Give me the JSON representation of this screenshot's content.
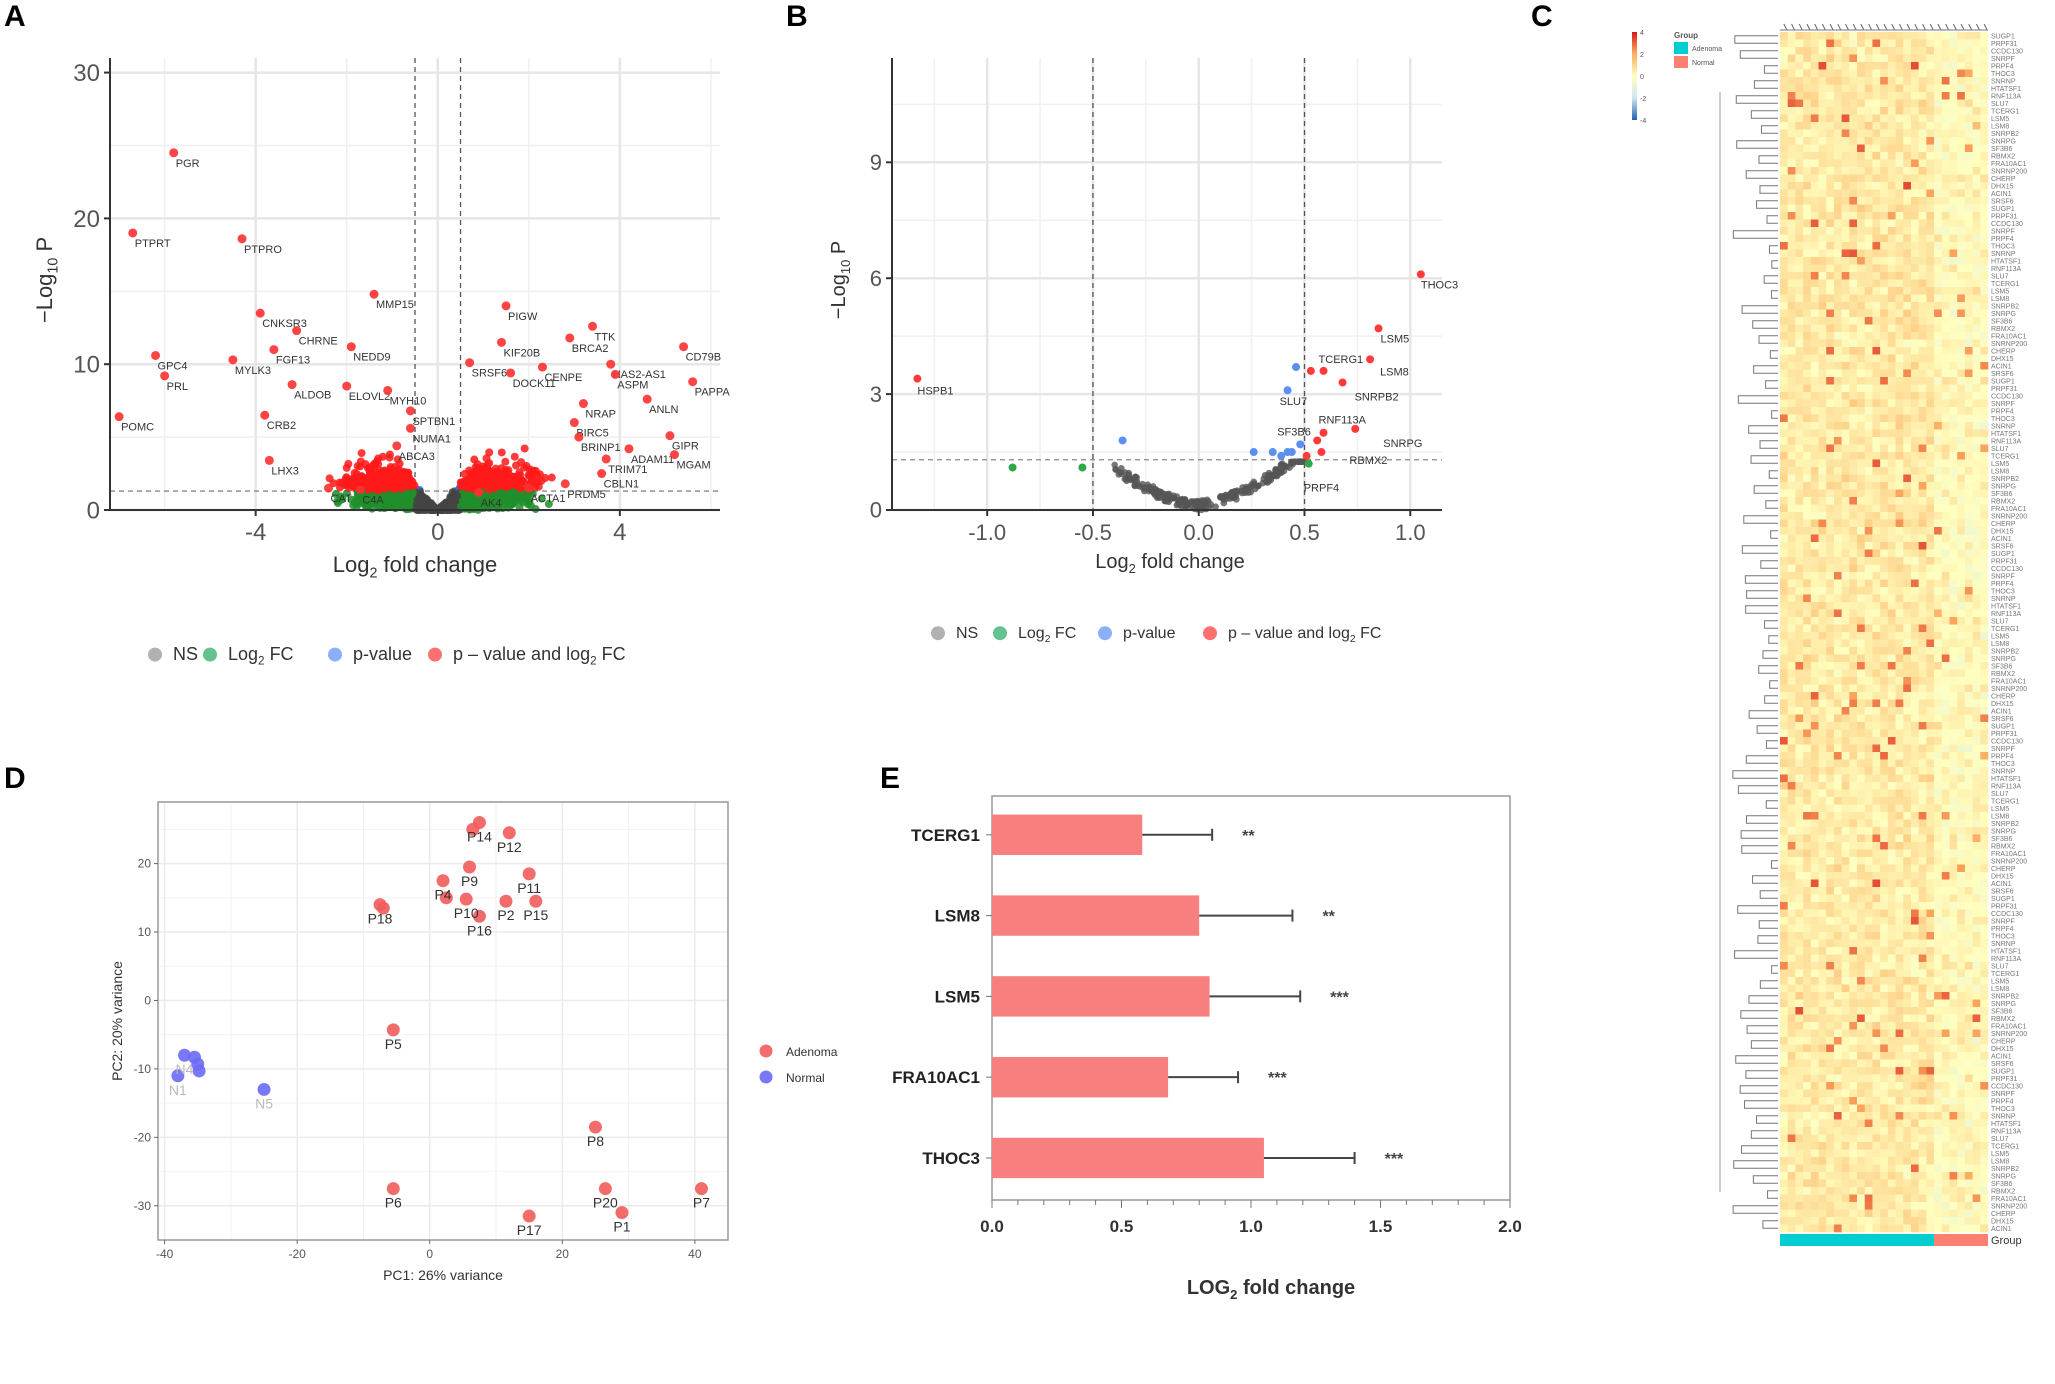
{
  "panels": {
    "A": {
      "letter": "A"
    },
    "B": {
      "letter": "B"
    },
    "C": {
      "letter": "C"
    },
    "D": {
      "letter": "D"
    },
    "E": {
      "letter": "E"
    }
  },
  "chart_data": [
    {
      "id": "A",
      "type": "scatter",
      "subtype": "volcano",
      "title": "",
      "xlabel": "Log2 fold change",
      "ylabel": "-Log10 P",
      "xlim": [
        -7.2,
        6.2
      ],
      "ylim": [
        0,
        31
      ],
      "xticks": [
        -4,
        0,
        4
      ],
      "yticks": [
        0,
        10,
        20,
        30
      ],
      "thresholds": {
        "log2fc": [
          -0.5,
          0.5
        ],
        "neg_log10_p": 1.3
      },
      "grid": true,
      "legend": {
        "placement": "bottom",
        "entries": [
          {
            "label": "NS",
            "color": "#9e9e9e"
          },
          {
            "label": "Log2 FC",
            "color": "#3cb371"
          },
          {
            "label": "p-value",
            "color": "#6f9cf5"
          },
          {
            "label": "p – value and log2 FC",
            "color": "#ff4d4d"
          }
        ]
      },
      "labeled_points": [
        {
          "gene": "PGR",
          "x": -5.8,
          "y": 24.5
        },
        {
          "gene": "PTPRT",
          "x": -6.7,
          "y": 19.0
        },
        {
          "gene": "PTPRO",
          "x": -4.3,
          "y": 18.6
        },
        {
          "gene": "MMP15",
          "x": -1.4,
          "y": 14.8
        },
        {
          "gene": "CNKSR3",
          "x": -3.9,
          "y": 13.5
        },
        {
          "gene": "CHRNE",
          "x": -3.1,
          "y": 12.3
        },
        {
          "gene": "FGF13",
          "x": -3.6,
          "y": 11.0
        },
        {
          "gene": "NEDD9",
          "x": -1.9,
          "y": 11.2
        },
        {
          "gene": "GPC4",
          "x": -6.2,
          "y": 10.6
        },
        {
          "gene": "MYLK3",
          "x": -4.5,
          "y": 10.3
        },
        {
          "gene": "PRL",
          "x": -6.0,
          "y": 9.2
        },
        {
          "gene": "ALDOB",
          "x": -3.2,
          "y": 8.6
        },
        {
          "gene": "ELOVL2",
          "x": -2.0,
          "y": 8.5
        },
        {
          "gene": "MYH10",
          "x": -1.1,
          "y": 8.2
        },
        {
          "gene": "POMC",
          "x": -7.0,
          "y": 6.4
        },
        {
          "gene": "CRB2",
          "x": -3.8,
          "y": 6.5
        },
        {
          "gene": "SPTBN1",
          "x": -0.6,
          "y": 6.8
        },
        {
          "gene": "NUMA1",
          "x": -0.6,
          "y": 5.6
        },
        {
          "gene": "ABCA3",
          "x": -0.9,
          "y": 4.4
        },
        {
          "gene": "LHX3",
          "x": -3.7,
          "y": 3.4
        },
        {
          "gene": "CAT",
          "x": -2.4,
          "y": 1.5
        },
        {
          "gene": "C4A",
          "x": -1.7,
          "y": 1.4
        },
        {
          "gene": "PIGW",
          "x": 1.5,
          "y": 14.0
        },
        {
          "gene": "TTK",
          "x": 3.4,
          "y": 12.6
        },
        {
          "gene": "KIF20B",
          "x": 1.4,
          "y": 11.5
        },
        {
          "gene": "BRCA2",
          "x": 2.9,
          "y": 11.8
        },
        {
          "gene": "CD79B",
          "x": 5.4,
          "y": 11.2
        },
        {
          "gene": "SRSF6",
          "x": 0.7,
          "y": 10.1
        },
        {
          "gene": "CENPE",
          "x": 2.3,
          "y": 9.8
        },
        {
          "gene": "HAS2-AS1",
          "x": 3.8,
          "y": 10.0
        },
        {
          "gene": "ASPM",
          "x": 3.9,
          "y": 9.3
        },
        {
          "gene": "DOCK11",
          "x": 1.6,
          "y": 9.4
        },
        {
          "gene": "PAPPA",
          "x": 5.6,
          "y": 8.8
        },
        {
          "gene": "ANLN",
          "x": 4.6,
          "y": 7.6
        },
        {
          "gene": "NRAP",
          "x": 3.2,
          "y": 7.3
        },
        {
          "gene": "BIRC5",
          "x": 3.0,
          "y": 6.0
        },
        {
          "gene": "BRINP1",
          "x": 3.1,
          "y": 5.0
        },
        {
          "gene": "GIPR",
          "x": 5.1,
          "y": 5.1
        },
        {
          "gene": "ADAM11",
          "x": 4.2,
          "y": 4.2
        },
        {
          "gene": "MGAM",
          "x": 5.2,
          "y": 3.8
        },
        {
          "gene": "TRIM71",
          "x": 3.7,
          "y": 3.5
        },
        {
          "gene": "CBLN1",
          "x": 3.6,
          "y": 2.5
        },
        {
          "gene": "PRDM5",
          "x": 2.8,
          "y": 1.8
        },
        {
          "gene": "ACTA1",
          "x": 2.0,
          "y": 1.5
        },
        {
          "gene": "AK4",
          "x": 0.9,
          "y": 1.2
        }
      ]
    },
    {
      "id": "B",
      "type": "scatter",
      "subtype": "volcano",
      "title": "",
      "xlabel": "Log2 fold change",
      "ylabel": "-Log10 P",
      "xlim": [
        -1.45,
        1.15
      ],
      "ylim": [
        0,
        11.7
      ],
      "xticks": [
        -1.0,
        -0.5,
        0.0,
        0.5,
        1.0
      ],
      "yticks": [
        0,
        3,
        6,
        9
      ],
      "thresholds": {
        "log2fc": [
          -0.5,
          0.5
        ],
        "neg_log10_p": 1.3
      },
      "grid": true,
      "legend": {
        "placement": "bottom",
        "entries": [
          {
            "label": "NS",
            "color": "#9e9e9e"
          },
          {
            "label": "Log2 FC",
            "color": "#3cb371"
          },
          {
            "label": "p-value",
            "color": "#6f9cf5"
          },
          {
            "label": "p – value and log2 FC",
            "color": "#ff4d4d"
          }
        ]
      },
      "points": [
        {
          "gene": "THOC3",
          "x": 1.05,
          "y": 6.1,
          "cls": "both"
        },
        {
          "gene": "LSM5",
          "x": 0.85,
          "y": 4.7,
          "cls": "both"
        },
        {
          "gene": "LSM8",
          "x": 0.81,
          "y": 3.9,
          "cls": "both"
        },
        {
          "gene": "TCERG1",
          "x": 0.59,
          "y": 3.6,
          "cls": "both"
        },
        {
          "gene": "",
          "x": 0.53,
          "y": 3.6,
          "cls": "both"
        },
        {
          "gene": "SNRPB2",
          "x": 0.68,
          "y": 3.3,
          "cls": "both"
        },
        {
          "gene": "SLU7",
          "x": 0.42,
          "y": 3.1,
          "cls": "pval"
        },
        {
          "gene": "",
          "x": 0.46,
          "y": 3.7,
          "cls": "pval"
        },
        {
          "gene": "HSPB1",
          "x": -1.33,
          "y": 3.4,
          "cls": "both"
        },
        {
          "gene": "RNF113A",
          "x": 0.59,
          "y": 2.0,
          "cls": "both"
        },
        {
          "gene": "SNRPG",
          "x": 0.74,
          "y": 2.1,
          "cls": "both"
        },
        {
          "gene": "SF3B6",
          "x": 0.56,
          "y": 1.8,
          "cls": "both"
        },
        {
          "gene": "RBMX2",
          "x": 0.58,
          "y": 1.5,
          "cls": "both"
        },
        {
          "gene": "PRPF4",
          "x": 0.52,
          "y": 1.2,
          "cls": "log2fc"
        },
        {
          "gene": "",
          "x": 0.51,
          "y": 1.4,
          "cls": "both"
        },
        {
          "gene": "",
          "x": -0.88,
          "y": 1.1,
          "cls": "log2fc"
        },
        {
          "gene": "",
          "x": -0.55,
          "y": 1.1,
          "cls": "log2fc"
        },
        {
          "gene": "",
          "x": -0.36,
          "y": 1.8,
          "cls": "pval"
        },
        {
          "gene": "",
          "x": 0.48,
          "y": 1.7,
          "cls": "pval"
        },
        {
          "gene": "",
          "x": 0.26,
          "y": 1.5,
          "cls": "pval"
        },
        {
          "gene": "",
          "x": 0.35,
          "y": 1.5,
          "cls": "pval"
        },
        {
          "gene": "",
          "x": 0.39,
          "y": 1.4,
          "cls": "pval"
        },
        {
          "gene": "",
          "x": 0.42,
          "y": 1.5,
          "cls": "pval"
        },
        {
          "gene": "",
          "x": 0.44,
          "y": 1.5,
          "cls": "pval"
        }
      ],
      "labeled_genes": [
        "THOC3",
        "LSM5",
        "TCERG1",
        "LSM8",
        "SLU7",
        "SNRPB2",
        "HSPB1",
        "RNF113A",
        "SF3B6",
        "SNRPG",
        "RBMX2",
        "PRPF4"
      ]
    },
    {
      "id": "C",
      "type": "heatmap",
      "title": "",
      "color_scale": {
        "min": -4,
        "max": 4,
        "ticks": [
          4,
          2,
          0,
          -2,
          -4
        ],
        "colors": [
          "#2166ac",
          "#d1e5f0",
          "#ffffbf",
          "#fdae61",
          "#d7191c"
        ]
      },
      "annotation_legend": {
        "title": "Group",
        "entries": [
          {
            "label": "Adenoma",
            "color": "#00ced1"
          },
          {
            "label": "Normal",
            "color": "#fa8072"
          }
        ]
      },
      "group_bar_label": "Group",
      "n_rows": 160,
      "n_cols": 27,
      "group_split": {
        "Adenoma": 20,
        "Normal": 7
      },
      "row_labels_visible": [
        "SUGP1",
        "PRPF31",
        "CCDC130",
        "SNRPF",
        "PRPF4",
        "THOC3",
        "SNRNP",
        "HTATSF1",
        "RNF113A",
        "SLU7",
        "TCERG1",
        "LSM5",
        "LSM8",
        "SNRPB2",
        "SNRPG",
        "SF3B6",
        "RBMX2",
        "FRA10AC1",
        "SNRNP200",
        "CHERP",
        "DHX15",
        "ACIN1",
        "SRSF6"
      ]
    },
    {
      "id": "D",
      "type": "scatter",
      "subtype": "pca",
      "title": "",
      "xlabel": "PC1: 26% variance",
      "ylabel": "PC2: 20% variance",
      "xlim": [
        -41,
        45
      ],
      "ylim": [
        -35,
        29
      ],
      "xticks": [
        -40,
        -20,
        0,
        20,
        40
      ],
      "yticks": [
        -30,
        -20,
        -10,
        0,
        10,
        20
      ],
      "grid": true,
      "legend": {
        "placement": "right",
        "entries": [
          {
            "label": "Adenoma",
            "color": "#f25c5c"
          },
          {
            "label": "Normal",
            "color": "#6a6af5"
          }
        ]
      },
      "points": [
        {
          "label": "P14",
          "x": 7.5,
          "y": 26.0,
          "group": "Adenoma"
        },
        {
          "label": "",
          "x": 6.5,
          "y": 25.0,
          "group": "Adenoma"
        },
        {
          "label": "P12",
          "x": 12.0,
          "y": 24.5,
          "group": "Adenoma"
        },
        {
          "label": "P9",
          "x": 6.0,
          "y": 19.5,
          "group": "Adenoma"
        },
        {
          "label": "P11",
          "x": 15.0,
          "y": 18.5,
          "group": "Adenoma"
        },
        {
          "label": "P4",
          "x": 2.0,
          "y": 17.5,
          "group": "Adenoma"
        },
        {
          "label": "",
          "x": 2.5,
          "y": 15.0,
          "group": "Adenoma"
        },
        {
          "label": "P10",
          "x": 5.5,
          "y": 14.8,
          "group": "Adenoma"
        },
        {
          "label": "P2",
          "x": 11.5,
          "y": 14.5,
          "group": "Adenoma"
        },
        {
          "label": "P15",
          "x": 16.0,
          "y": 14.5,
          "group": "Adenoma"
        },
        {
          "label": "P16",
          "x": 7.5,
          "y": 12.3,
          "group": "Adenoma"
        },
        {
          "label": "P18",
          "x": -7.5,
          "y": 14.0,
          "group": "Adenoma"
        },
        {
          "label": "",
          "x": -7.0,
          "y": 13.5,
          "group": "Adenoma"
        },
        {
          "label": "P5",
          "x": -5.5,
          "y": -4.3,
          "group": "Adenoma"
        },
        {
          "label": "P8",
          "x": 25.0,
          "y": -18.5,
          "group": "Adenoma"
        },
        {
          "label": "P6",
          "x": -5.5,
          "y": -27.5,
          "group": "Adenoma"
        },
        {
          "label": "P20",
          "x": 26.5,
          "y": -27.5,
          "group": "Adenoma"
        },
        {
          "label": "P7",
          "x": 41.0,
          "y": -27.5,
          "group": "Adenoma"
        },
        {
          "label": "P17",
          "x": 15.0,
          "y": -31.5,
          "group": "Adenoma"
        },
        {
          "label": "P1",
          "x": 29.0,
          "y": -31.0,
          "group": "Adenoma"
        },
        {
          "label": "N4",
          "x": -37.0,
          "y": -8.0,
          "group": "Normal"
        },
        {
          "label": "",
          "x": -35.5,
          "y": -8.3,
          "group": "Normal"
        },
        {
          "label": "",
          "x": -35.0,
          "y": -9.3,
          "group": "Normal"
        },
        {
          "label": "",
          "x": -34.8,
          "y": -10.3,
          "group": "Normal"
        },
        {
          "label": "N1",
          "x": -38.0,
          "y": -11.0,
          "group": "Normal"
        },
        {
          "label": "N5",
          "x": -25.0,
          "y": -13.0,
          "group": "Normal"
        }
      ]
    },
    {
      "id": "E",
      "type": "bar",
      "orientation": "horizontal",
      "title": "",
      "xlabel": "LOG2 fold change",
      "ylabel": "",
      "xlim": [
        0,
        2.0
      ],
      "xticks": [
        0.0,
        0.5,
        1.0,
        1.5,
        2.0
      ],
      "categories": [
        "TCERG1",
        "LSM8",
        "LSM5",
        "FRA10AC1",
        "THOC3"
      ],
      "values": [
        0.58,
        0.8,
        0.84,
        0.68,
        1.05
      ],
      "errors": [
        0.27,
        0.36,
        0.35,
        0.27,
        0.35
      ],
      "significance": [
        "**",
        "**",
        "***",
        "***",
        "***"
      ],
      "bar_color": "#f87f7f"
    }
  ]
}
